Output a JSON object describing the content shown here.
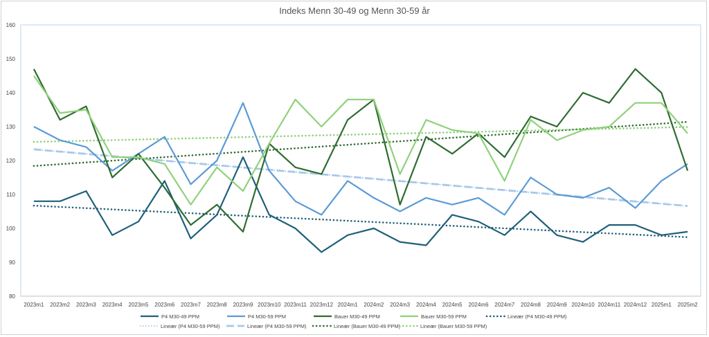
{
  "chart_data": {
    "type": "line",
    "title": "Indeks Menn 30-49 og Menn 30-59 år",
    "categories": [
      "2023m1",
      "2023m2",
      "2023m3",
      "2023m4",
      "2023m5",
      "2023m6",
      "2023m7",
      "2023m8",
      "2023m9",
      "2023m10",
      "2023m11",
      "2023m12",
      "2024m1",
      "2024m2",
      "2024m3",
      "2024m4",
      "2024m5",
      "2024m6",
      "2024m7",
      "2024m8",
      "2024m9",
      "2024m10",
      "2024m11",
      "2024m12",
      "2025m1",
      "2025m2"
    ],
    "ylim": [
      80,
      160
    ],
    "yticks": [
      80,
      90,
      100,
      110,
      120,
      130,
      140,
      150,
      160
    ],
    "grid": false,
    "legend_position": "bottom",
    "series": [
      {
        "name": "P4 M30-49 PPM",
        "color": "#1f5f7a",
        "values": [
          108,
          108,
          111,
          98,
          102,
          114,
          97,
          104,
          121,
          104,
          100,
          93,
          98,
          100,
          96,
          95,
          104,
          102,
          98,
          105,
          98,
          96,
          101,
          101,
          98,
          99
        ]
      },
      {
        "name": "P4 M30-59 PPM",
        "color": "#5b9bd5",
        "values": [
          130,
          126,
          124,
          117,
          122,
          127,
          113,
          120,
          137,
          117,
          108,
          104,
          114,
          109,
          105,
          109,
          107,
          109,
          104,
          115,
          110,
          109,
          112,
          106,
          114,
          119
        ]
      },
      {
        "name": "Bauer M30-49 PPM",
        "color": "#2e6b30",
        "values": [
          147,
          132,
          136,
          115,
          122,
          112,
          101,
          107,
          99,
          125,
          118,
          116,
          132,
          138,
          107,
          127,
          122,
          128,
          121,
          133,
          130,
          140,
          137,
          147,
          140,
          117
        ]
      },
      {
        "name": "Bauer M30-59 PPM",
        "color": "#8fd17a",
        "values": [
          145,
          134,
          135,
          121,
          121,
          119,
          107,
          118,
          111,
          125,
          138,
          130,
          138,
          138,
          116,
          132,
          129,
          128,
          114,
          132,
          126,
          129,
          130,
          137,
          137,
          128
        ]
      }
    ],
    "trendlines": [
      {
        "name": "Lineær (P4 M30-49 PPM)",
        "color": "#1f5f7a",
        "style": "dotted-thick",
        "start": 106.7,
        "end": 97.4
      },
      {
        "name": "Lineær (P4 M30-59 PPM)",
        "color": "#5b9bd5",
        "style": "dotted-thin",
        "start": 123.3,
        "end": 106.6
      },
      {
        "name": "Lineær (P4 M30-59 PPM)",
        "color": "#a8c8ea",
        "style": "dashed",
        "start": 123.3,
        "end": 106.6
      },
      {
        "name": "Lineær (Bauer M30-49 PPM)",
        "color": "#2e6b30",
        "style": "dotted-thick",
        "start": 118.4,
        "end": 131.4
      },
      {
        "name": "Lineær (Bauer M30-59 PPM)",
        "color": "#8fd17a",
        "style": "dotted-thick",
        "start": 125.5,
        "end": 129.9
      }
    ]
  }
}
